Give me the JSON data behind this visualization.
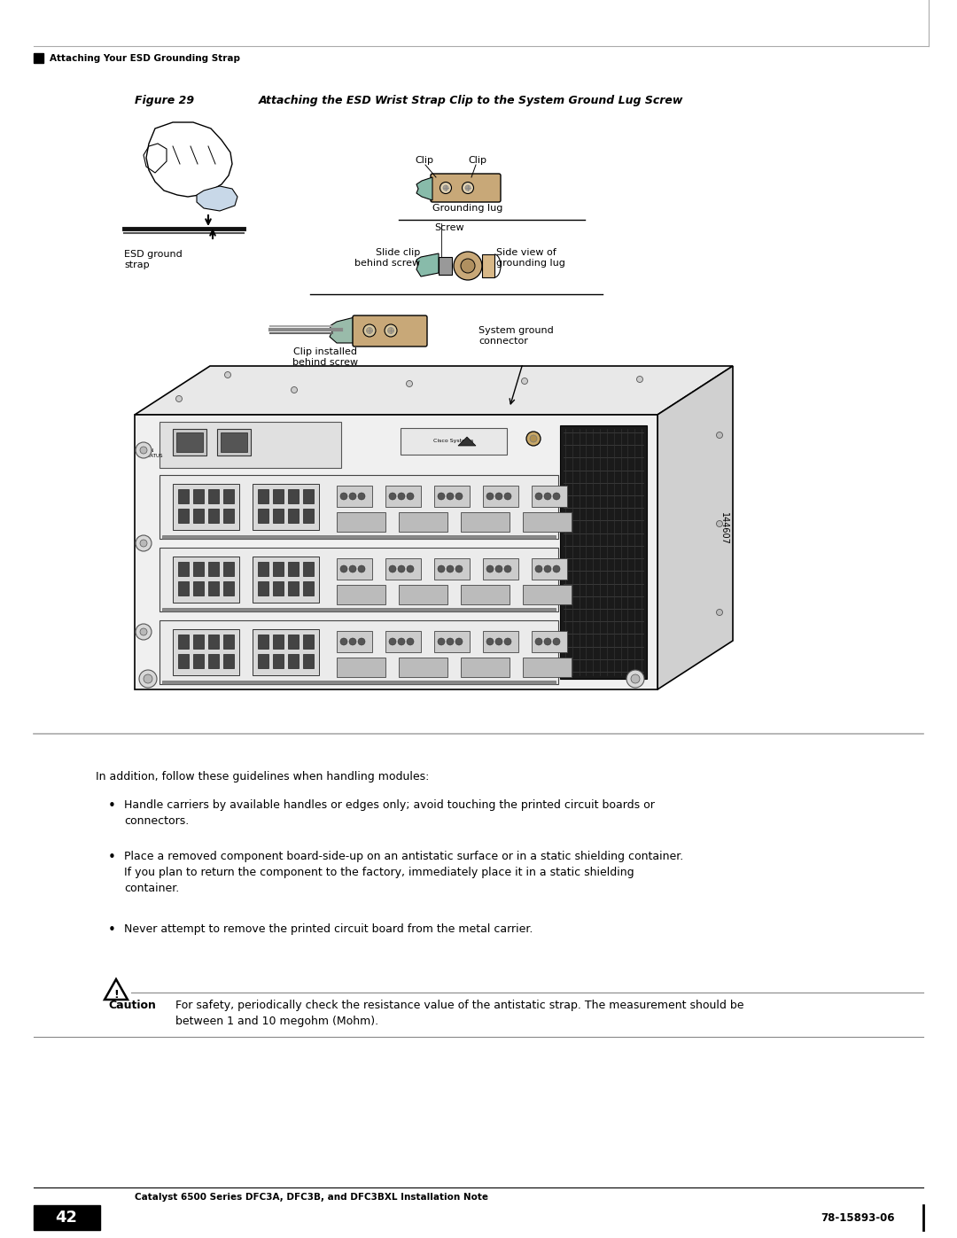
{
  "page_width": 10.8,
  "page_height": 13.97,
  "bg_color": "#ffffff",
  "header_text": "Attaching Your ESD Grounding Strap",
  "figure_label": "Figure 29",
  "figure_title": "Attaching the ESD Wrist Strap Clip to the System Ground Lug Screw",
  "body_text_intro": "In addition, follow these guidelines when handling modules:",
  "bullet1_line1": "Handle carriers by available handles or edges only; avoid touching the printed circuit boards or",
  "bullet1_line2": "connectors.",
  "bullet2_line1": "Place a removed component board-side-up on an antistatic surface or in a static shielding container.",
  "bullet2_line2": "If you plan to return the component to the factory, immediately place it in a static shielding",
  "bullet2_line3": "container.",
  "bullet3": "Never attempt to remove the printed circuit board from the metal carrier.",
  "caution_label": "Caution",
  "caution_line1": "For safety, periodically check the resistance value of the antistatic strap. The measurement should be",
  "caution_line2": "between 1 and 10 megohm (Mohm).",
  "footer_title": "Catalyst 6500 Series DFC3A, DFC3B, and DFC3BXL Installation Note",
  "footer_page": "42",
  "footer_doc": "78-15893-06",
  "label_clip": "Clip",
  "label_grounding_lug": "Grounding lug",
  "label_screw": "Screw",
  "label_slide_clip": "Slide clip\nbehind screw",
  "label_side_view": "Side view of\ngrounding lug",
  "label_clip_installed": "Clip installed\nbehind screw",
  "label_system_ground": "System ground\nconnector",
  "label_esd_ground": "ESD ground\nstrap",
  "label_144607": "144607"
}
